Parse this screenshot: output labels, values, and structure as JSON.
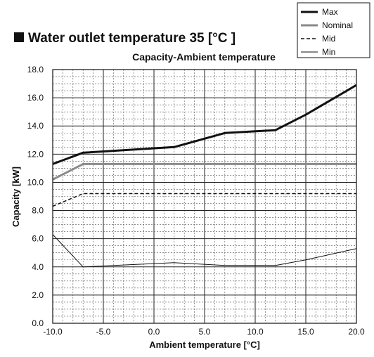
{
  "chart_data": {
    "type": "line",
    "title": "Water outlet temperature 35 [°C ]",
    "subtitle": "Capacity-Ambient temperature",
    "xlabel": "Ambient temperature [°C]",
    "ylabel": "Capacity [kW]",
    "xlim": [
      -10,
      20
    ],
    "ylim": [
      0,
      18
    ],
    "xticks": [
      "-10.0",
      "-5.0",
      "0.0",
      "5.0",
      "10.0",
      "15.0",
      "20.0"
    ],
    "yticks": [
      "0.0",
      "2.0",
      "4.0",
      "6.0",
      "8.0",
      "10.0",
      "12.0",
      "14.0",
      "16.0",
      "18.0"
    ],
    "grid": true,
    "legend_position": "top-right",
    "series": [
      {
        "name": "Max",
        "style": "solid-thick",
        "color": "#111111",
        "points": [
          [
            -10,
            11.3
          ],
          [
            -7,
            12.1
          ],
          [
            2,
            12.5
          ],
          [
            7,
            13.5
          ],
          [
            12,
            13.7
          ],
          [
            15,
            14.8
          ],
          [
            20,
            16.9
          ]
        ]
      },
      {
        "name": "Nominal",
        "style": "solid-thick",
        "color": "#8a8a8a",
        "points": [
          [
            -10,
            10.2
          ],
          [
            -7,
            11.3
          ],
          [
            20,
            11.3
          ]
        ]
      },
      {
        "name": "Mid",
        "style": "dashed",
        "color": "#111111",
        "points": [
          [
            -10,
            8.3
          ],
          [
            -7,
            9.2
          ],
          [
            20,
            9.2
          ]
        ]
      },
      {
        "name": "Min",
        "style": "solid-thin",
        "color": "#111111",
        "points": [
          [
            -10,
            6.3
          ],
          [
            -7,
            4.0
          ],
          [
            2,
            4.3
          ],
          [
            7,
            4.1
          ],
          [
            12,
            4.1
          ],
          [
            15,
            4.5
          ],
          [
            20,
            5.3
          ]
        ]
      }
    ]
  }
}
